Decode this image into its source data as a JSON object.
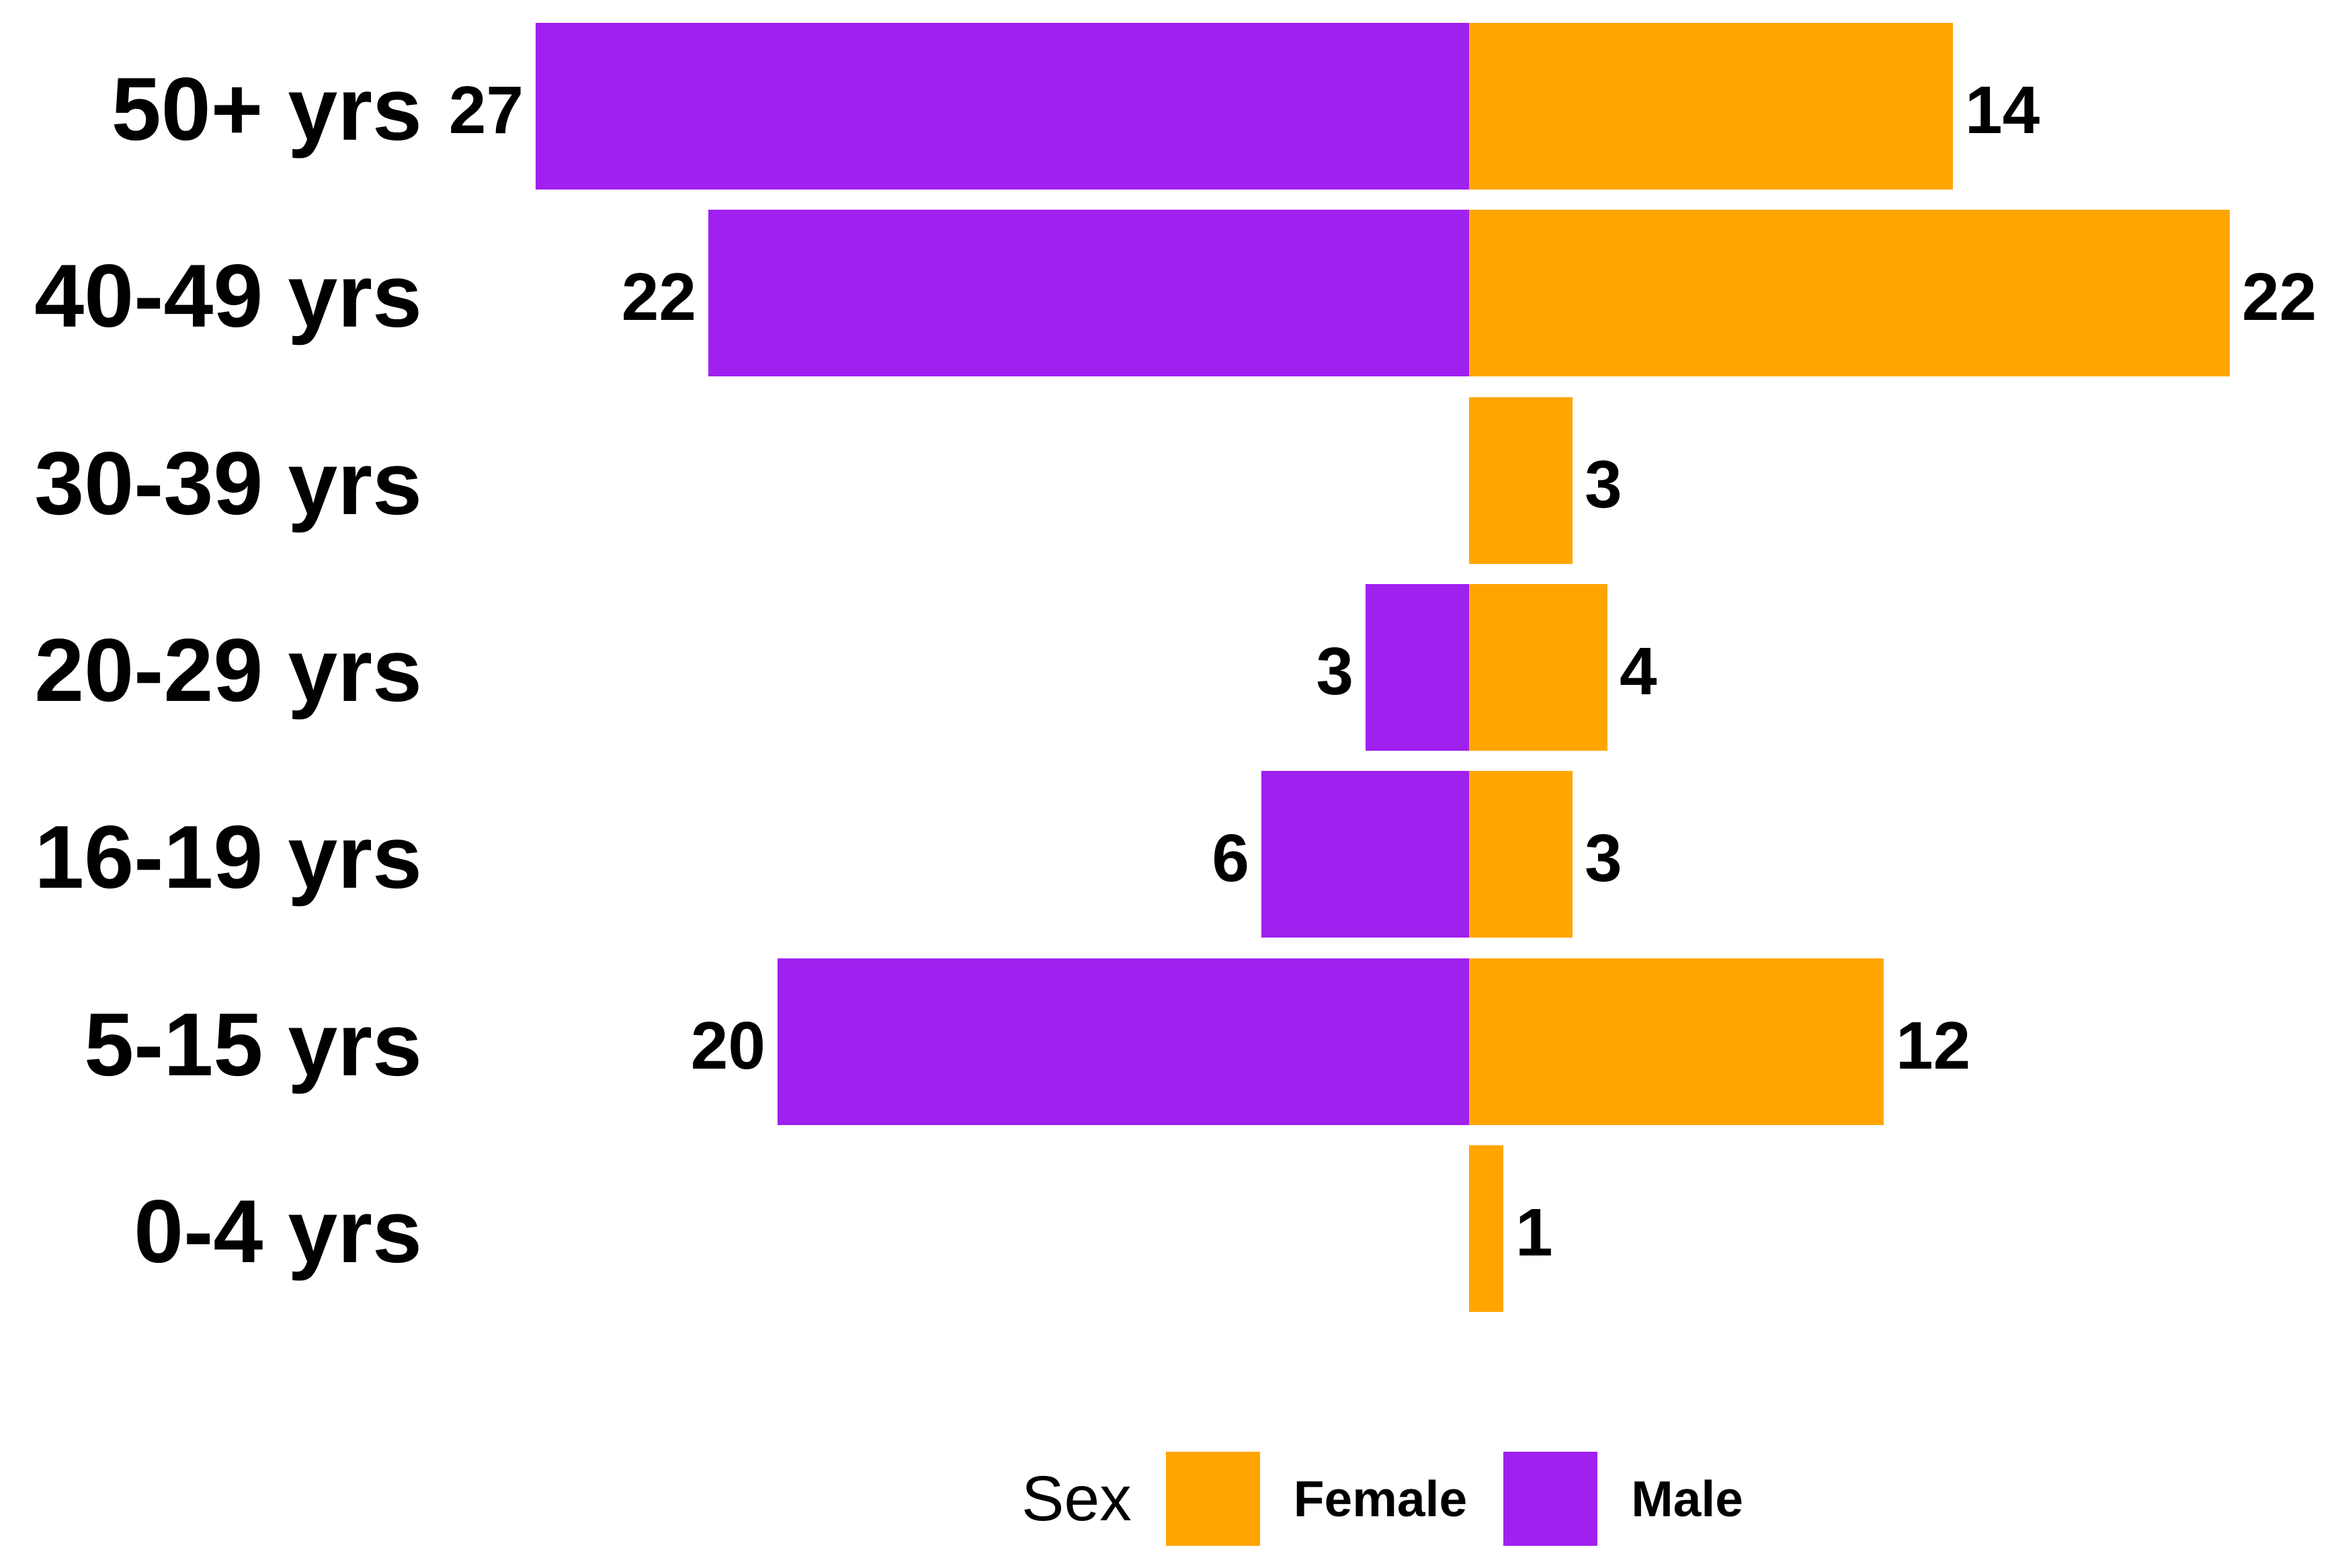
{
  "chart_data": {
    "type": "bar",
    "variant": "diverging-horizontal-pyramid",
    "title": "",
    "xlabel": "",
    "ylabel": "",
    "grid": false,
    "axis_lines": false,
    "legend": {
      "title": "Sex",
      "position": "bottom",
      "items": [
        {
          "label": "Female",
          "color": "#FFA500"
        },
        {
          "label": "Male",
          "color": "#A020F0"
        }
      ]
    },
    "categories": [
      "50+ yrs",
      "40-49 yrs",
      "30-39 yrs",
      "20-29 yrs",
      "16-19 yrs",
      "5-15 yrs",
      "0-4 yrs"
    ],
    "series": [
      {
        "name": "Male",
        "side": "left",
        "color": "#A020F0",
        "values": [
          27,
          22,
          0,
          3,
          6,
          20,
          0
        ]
      },
      {
        "name": "Female",
        "side": "right",
        "color": "#FFA500",
        "values": [
          14,
          22,
          3,
          4,
          3,
          12,
          1
        ]
      }
    ],
    "rows": [
      {
        "category": "50+ yrs",
        "male": 27,
        "female": 14,
        "male_display": "27",
        "female_display": "14"
      },
      {
        "category": "40-49 yrs",
        "male": 22,
        "female": 22,
        "male_display": "22",
        "female_display": "22"
      },
      {
        "category": "30-39 yrs",
        "male": 0,
        "female": 3,
        "male_display": "",
        "female_display": "3"
      },
      {
        "category": "20-29 yrs",
        "male": 3,
        "female": 4,
        "male_display": "3",
        "female_display": "4"
      },
      {
        "category": "16-19 yrs",
        "male": 6,
        "female": 3,
        "male_display": "6",
        "female_display": "3"
      },
      {
        "category": "5-15 yrs",
        "male": 20,
        "female": 12,
        "male_display": "20",
        "female_display": "12"
      },
      {
        "category": "0-4 yrs",
        "male": 0,
        "female": 1,
        "male_display": "",
        "female_display": "1"
      }
    ],
    "colors": {
      "male": "#A020F0",
      "female": "#FFA500",
      "text": "#000000",
      "background": "#FFFFFF"
    }
  }
}
